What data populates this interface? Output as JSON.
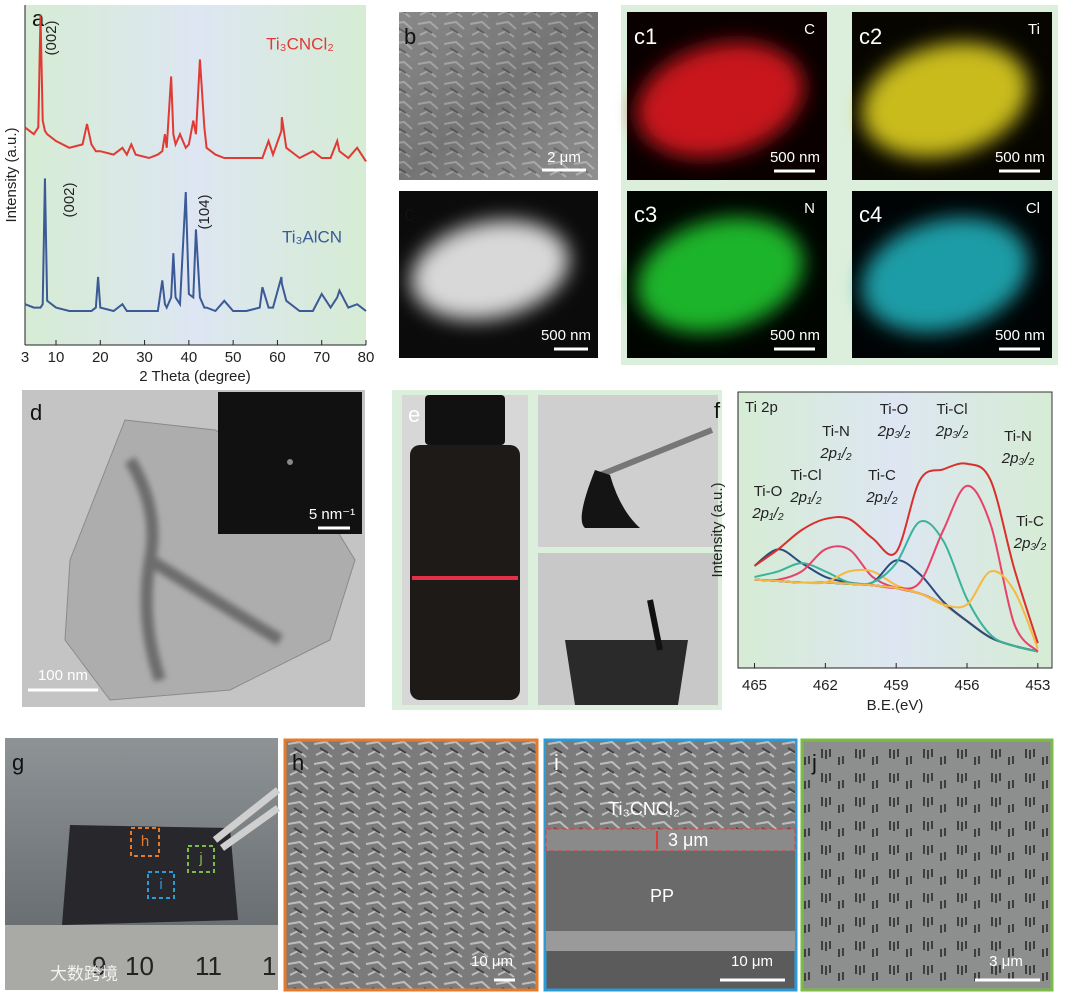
{
  "chart_data": [
    {
      "type": "line",
      "panel": "a",
      "x_label": "2 Theta (degree)",
      "y_label": "Intensity (a.u.)",
      "x": [
        3,
        5,
        6,
        6.5,
        7,
        7.5,
        8,
        10,
        13,
        16,
        17,
        18,
        19,
        19.5,
        20,
        23,
        25,
        26,
        27,
        28,
        31,
        33,
        34,
        34.6,
        35,
        36,
        36.5,
        37,
        38,
        39.3,
        40,
        41,
        41.6,
        42.5,
        43.5,
        44,
        46,
        48,
        50,
        53,
        56,
        56.6,
        58,
        59,
        60.9,
        61,
        62,
        65,
        68,
        70,
        72,
        73.5,
        74,
        76,
        78,
        80
      ],
      "xlim": [
        3,
        80
      ],
      "xticks": [
        3,
        10,
        20,
        30,
        40,
        50,
        60,
        70,
        80
      ],
      "ylim": [
        0,
        100
      ],
      "series": [
        {
          "name": "Ti₃CNCl₂",
          "color": "#e03a35",
          "values": [
            64,
            62,
            64,
            97,
            66,
            63,
            62,
            60,
            58,
            59,
            65,
            59,
            57,
            57,
            57,
            56,
            58,
            56,
            59,
            56,
            55,
            56,
            57,
            62,
            58,
            79,
            62,
            59,
            62,
            58,
            59,
            66,
            62,
            84,
            64,
            58,
            56,
            55,
            55,
            55,
            55,
            55,
            60,
            56,
            63,
            67,
            58,
            55,
            57,
            55,
            55,
            60,
            57,
            55,
            58,
            54
          ]
        },
        {
          "name": "Ti₃AlCN",
          "color": "#3b5a96",
          "values": [
            12,
            11,
            11,
            11,
            12,
            49,
            13,
            11,
            10,
            10,
            10,
            10,
            11,
            20,
            11,
            10,
            12,
            10,
            10,
            10,
            10,
            10,
            19,
            12,
            11,
            14,
            27,
            14,
            12,
            45,
            15,
            14,
            34,
            14,
            11,
            11,
            10,
            13,
            10,
            10,
            11,
            17,
            11,
            11,
            20,
            18,
            13,
            10,
            10,
            15,
            11,
            14,
            16,
            11,
            12,
            10
          ]
        }
      ],
      "annotations": [
        "(002)",
        "(002)",
        "(104)"
      ]
    },
    {
      "type": "line",
      "panel": "f",
      "title": "Ti 2p",
      "x_label": "B.E.(eV)",
      "y_label": "Intensity (a.u.)",
      "x": [
        465,
        464,
        463,
        462,
        461,
        460,
        459,
        458,
        457,
        456,
        455,
        454,
        453
      ],
      "xlim": [
        465.7,
        452.4
      ],
      "xticks": [
        465,
        462,
        459,
        456,
        453
      ],
      "ylim": [
        0,
        100
      ],
      "series": [
        {
          "color": "#2b4a7e",
          "values": [
            32,
            31.5,
            31,
            31,
            30.5,
            30,
            29,
            27,
            23,
            17,
            11,
            8,
            6
          ]
        },
        {
          "color": "#2b4a7e",
          "values": [
            37,
            43,
            38,
            33,
            31,
            30,
            29,
            27,
            23,
            17,
            11,
            8,
            6
          ]
        },
        {
          "color": "#3bb39a",
          "values": [
            33,
            35,
            38,
            35,
            31,
            30,
            29,
            27,
            23,
            17,
            11,
            8,
            6
          ]
        },
        {
          "color": "#e8426a",
          "values": [
            32,
            32,
            35,
            43,
            43,
            33,
            29,
            27,
            23,
            17,
            11,
            8,
            6
          ]
        },
        {
          "color": "#f4b942",
          "values": [
            32,
            31.5,
            31,
            31,
            35,
            35,
            30,
            27,
            23,
            17,
            11,
            8,
            6
          ]
        },
        {
          "color": "#2b4a7e",
          "values": [
            32,
            31.5,
            31,
            31,
            30.5,
            31,
            39,
            34,
            24,
            17,
            11,
            8,
            6
          ]
        },
        {
          "color": "#3bb39a",
          "values": [
            32,
            31.5,
            31,
            31,
            30.5,
            31,
            38,
            53,
            46,
            25,
            12,
            8,
            6
          ]
        },
        {
          "color": "#e8426a",
          "values": [
            32,
            31.5,
            31,
            31,
            30.5,
            30,
            29,
            31,
            50,
            66,
            52,
            16,
            6
          ]
        },
        {
          "color": "#f4b942",
          "values": [
            32,
            31.5,
            31,
            31,
            30.5,
            30,
            29,
            27,
            23,
            23,
            35,
            28,
            7
          ]
        },
        {
          "color": "#d9302b",
          "values": [
            37,
            43,
            50,
            54,
            54,
            47,
            42,
            68,
            72,
            74,
            68,
            36,
            9
          ]
        }
      ],
      "peak_labels": [
        {
          "species": "Ti-O",
          "orbital": "2p₁/₂"
        },
        {
          "species": "Ti-Cl",
          "orbital": "2p₁/₂"
        },
        {
          "species": "Ti-N",
          "orbital": "2p₁/₂"
        },
        {
          "species": "Ti-C",
          "orbital": "2p₁/₂"
        },
        {
          "species": "Ti-O",
          "orbital": "2p₃/₂"
        },
        {
          "species": "Ti-Cl",
          "orbital": "2p₃/₂"
        },
        {
          "species": "Ti-N",
          "orbital": "2p₃/₂"
        },
        {
          "species": "Ti-C",
          "orbital": "2p₃/₂"
        }
      ]
    }
  ],
  "panels": {
    "b": {
      "label": "b",
      "scale": "2 μm"
    },
    "c": {
      "label": "c",
      "scale": "500 nm"
    },
    "c1": {
      "label": "c1",
      "element": "C",
      "scale": "500 nm"
    },
    "c2": {
      "label": "c2",
      "element": "Ti",
      "scale": "500 nm"
    },
    "c3": {
      "label": "c3",
      "element": "N",
      "scale": "500 nm"
    },
    "c4": {
      "label": "c4",
      "element": "Cl",
      "scale": "500 nm"
    },
    "d": {
      "label": "d",
      "scale": "100 nm",
      "inset_scale": "5 nm⁻¹"
    },
    "e": {
      "label": "e"
    },
    "g": {
      "label": "g",
      "boxes": [
        "h",
        "i",
        "j"
      ],
      "ruler": [
        "9",
        "10",
        "11",
        "1"
      ],
      "watermark": "大数跨境"
    },
    "h": {
      "label": "h",
      "scale": "10 μm"
    },
    "i": {
      "label": "i",
      "layer": "Ti₃CNCl₂",
      "thickness": "3 μm",
      "substrate": "PP",
      "scale": "10 μm"
    },
    "j": {
      "label": "j",
      "scale": "3 μm"
    }
  }
}
